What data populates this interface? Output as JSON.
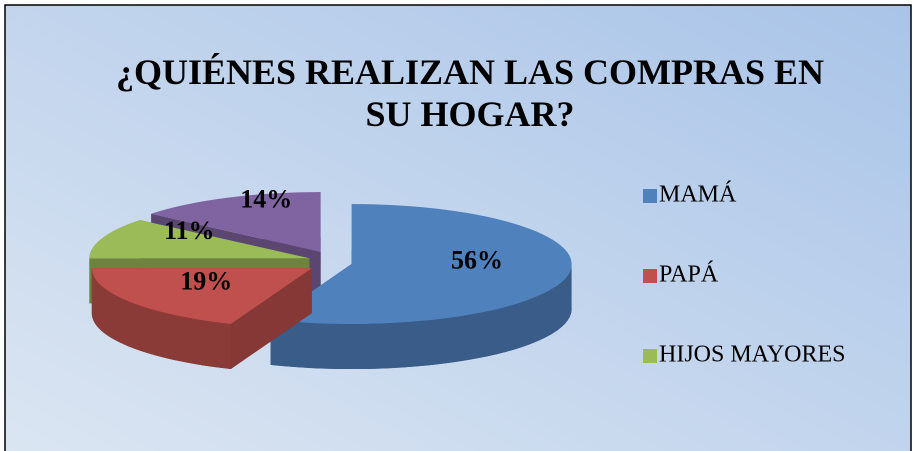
{
  "chart_data": {
    "type": "pie3d",
    "title": "¿QUIÉNES REALIZAN LAS COMPRAS EN SU HOGAR?",
    "categories": [
      "MAMÁ",
      "PAPÁ",
      "HIJOS MAYORES",
      null
    ],
    "values": [
      56,
      19,
      11,
      14
    ],
    "value_labels": [
      "56%",
      "19%",
      "11%",
      "14%"
    ],
    "colors": [
      "#4f81bd",
      "#c0504d",
      "#9bbb59",
      "#8064a2"
    ],
    "legend": "right"
  }
}
